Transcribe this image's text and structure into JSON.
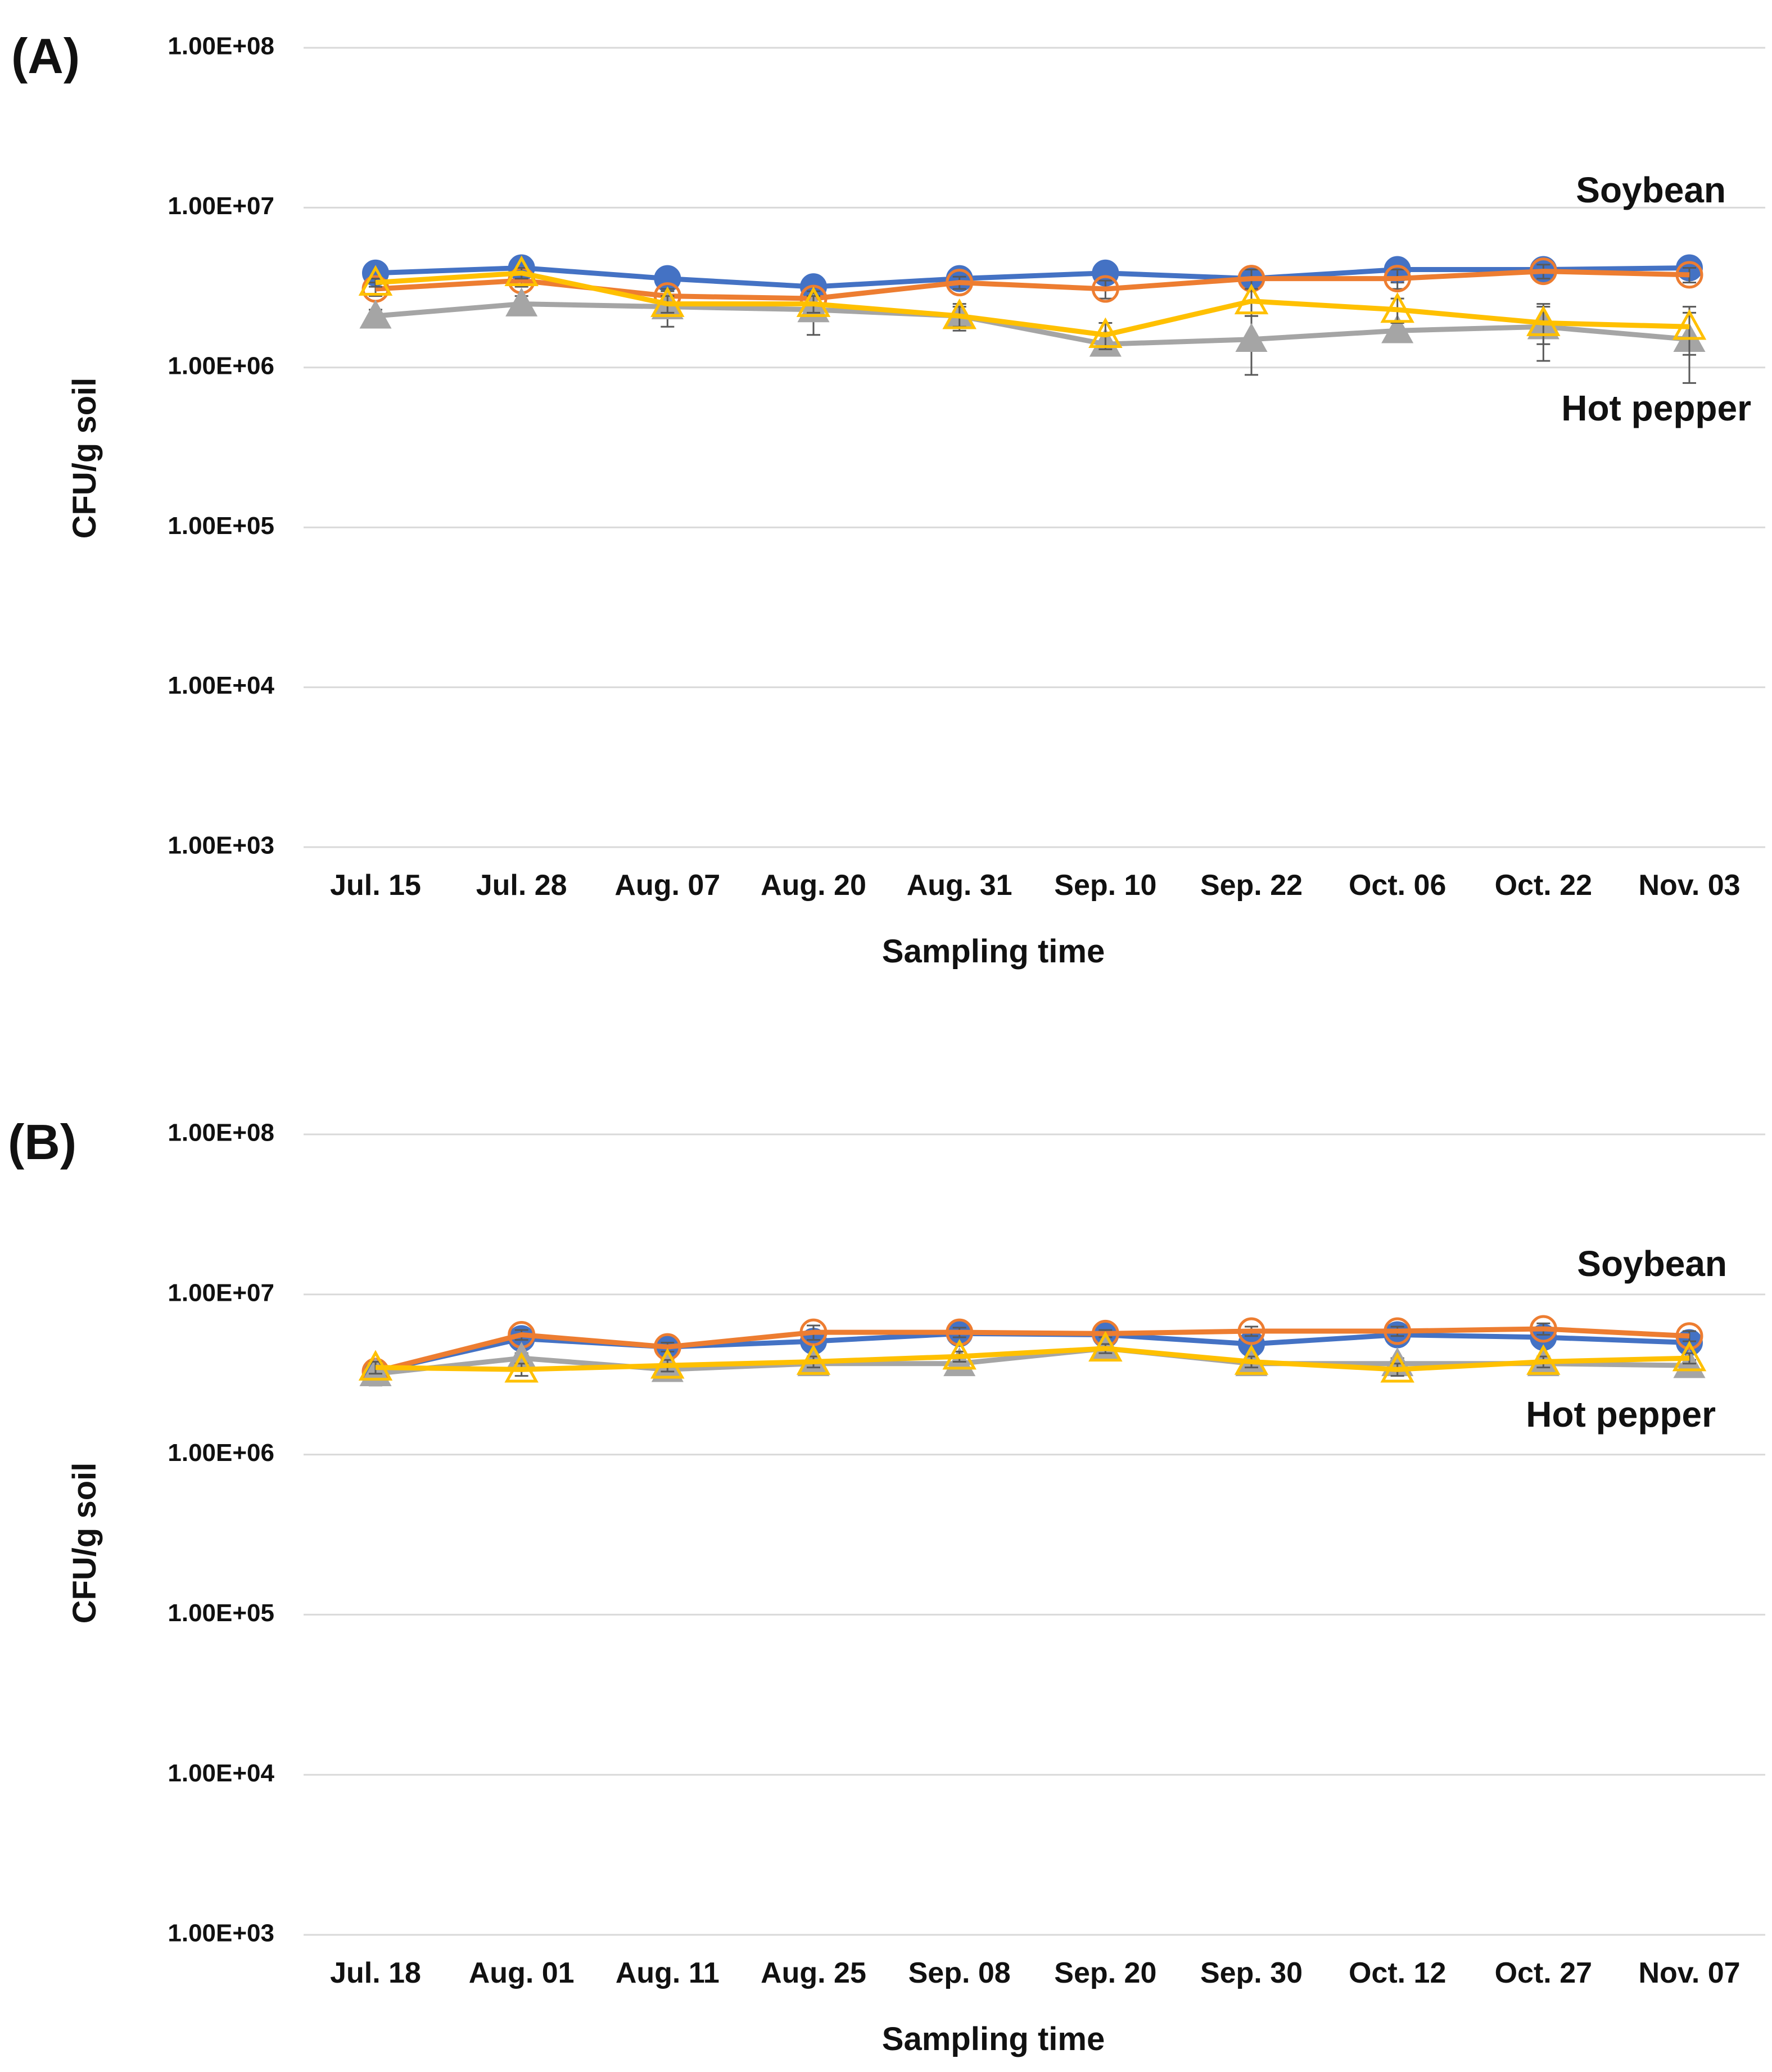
{
  "chart_data": [
    {
      "type": "line",
      "panel_label": "(A)",
      "ylabel": "CFU/g soil",
      "xlabel": "Sampling time",
      "yscale": "log",
      "ylim": [
        1000,
        100000000
      ],
      "yticks": [
        1000,
        10000,
        100000,
        1000000,
        10000000,
        100000000
      ],
      "ytick_labels": [
        "1.00E+03",
        "1.00E+04",
        "1.00E+05",
        "1.00E+06",
        "1.00E+07",
        "1.00E+08"
      ],
      "grid": true,
      "categories": [
        "Jul. 15",
        "Jul. 28",
        "Aug. 07",
        "Aug. 20",
        "Aug. 31",
        "Sep. 10",
        "Sep. 22",
        "Oct. 06",
        "Oct. 22",
        "Nov. 03"
      ],
      "annotations": [
        "Soybean",
        "Hot pepper"
      ],
      "series": [
        {
          "name": "Soybean (filled circle)",
          "color": "#4472C4",
          "marker": "circle-filled",
          "values": [
            3900000,
            4200000,
            3600000,
            3200000,
            3600000,
            3900000,
            3600000,
            4100000,
            4100000,
            4200000
          ],
          "errors": [
            300000,
            300000,
            400000,
            200000,
            300000,
            300000,
            500000,
            700000,
            300000,
            300000
          ]
        },
        {
          "name": "Soybean (open circle)",
          "color": "#ED7D31",
          "marker": "circle-open",
          "values": [
            3100000,
            3500000,
            2800000,
            2700000,
            3400000,
            3100000,
            3600000,
            3600000,
            4000000,
            3800000
          ],
          "errors": [
            300000,
            300000,
            300000,
            300000,
            300000,
            400000,
            500000,
            500000,
            400000,
            400000
          ]
        },
        {
          "name": "Hot pepper (filled triangle)",
          "color": "#A5A5A5",
          "marker": "triangle-filled",
          "values": [
            2100000,
            2500000,
            2400000,
            2300000,
            2100000,
            1400000,
            1500000,
            1700000,
            1800000,
            1500000
          ],
          "errors": [
            200000,
            300000,
            600000,
            700000,
            400000,
            200000,
            600000,
            200000,
            700000,
            700000
          ]
        },
        {
          "name": "Hot pepper (open triangle)",
          "color": "#FFC000",
          "marker": "triangle-open",
          "values": [
            3400000,
            3900000,
            2500000,
            2500000,
            2100000,
            1600000,
            2600000,
            2300000,
            1900000,
            1800000
          ],
          "errors": [
            200000,
            300000,
            300000,
            300000,
            300000,
            300000,
            500000,
            400000,
            500000,
            600000
          ]
        }
      ]
    },
    {
      "type": "line",
      "panel_label": "(B)",
      "ylabel": "CFU/g soil",
      "xlabel": "Sampling time",
      "yscale": "log",
      "ylim": [
        1000,
        100000000
      ],
      "yticks": [
        1000,
        10000,
        100000,
        1000000,
        10000000,
        100000000
      ],
      "ytick_labels": [
        "1.00E+03",
        "1.00E+04",
        "1.00E+05",
        "1.00E+06",
        "1.00E+07",
        "1.00E+08"
      ],
      "grid": true,
      "categories": [
        "Jul. 18",
        "Aug. 01",
        "Aug. 11",
        "Aug. 25",
        "Sep. 08",
        "Sep. 20",
        "Sep. 30",
        "Oct. 12",
        "Oct. 27",
        "Nov. 07"
      ],
      "annotations": [
        "Soybean",
        "Hot pepper"
      ],
      "series": [
        {
          "name": "Soybean (filled circle)",
          "color": "#4472C4",
          "marker": "circle-filled",
          "values": [
            3300000,
            5300000,
            4700000,
            5100000,
            5700000,
            5600000,
            4900000,
            5600000,
            5400000,
            5000000
          ],
          "errors": [
            400000,
            400000,
            300000,
            400000,
            300000,
            300000,
            300000,
            300000,
            400000,
            300000
          ]
        },
        {
          "name": "Soybean (open circle)",
          "color": "#ED7D31",
          "marker": "circle-open",
          "values": [
            3300000,
            5600000,
            4700000,
            5800000,
            5800000,
            5700000,
            5900000,
            5900000,
            6100000,
            5500000
          ],
          "errors": [
            400000,
            400000,
            300000,
            600000,
            400000,
            300000,
            400000,
            400000,
            500000,
            400000
          ]
        },
        {
          "name": "Hot pepper (filled triangle)",
          "color": "#A5A5A5",
          "marker": "triangle-filled",
          "values": [
            3200000,
            4000000,
            3400000,
            3700000,
            3700000,
            4600000,
            3700000,
            3700000,
            3700000,
            3600000
          ],
          "errors": [
            500000,
            300000,
            400000,
            300000,
            300000,
            300000,
            300000,
            300000,
            300000,
            300000
          ]
        },
        {
          "name": "Hot pepper (open triangle)",
          "color": "#FFC000",
          "marker": "triangle-open",
          "values": [
            3500000,
            3400000,
            3600000,
            3800000,
            4100000,
            4600000,
            3800000,
            3400000,
            3800000,
            4000000
          ],
          "errors": [
            300000,
            300000,
            300000,
            300000,
            300000,
            300000,
            300000,
            300000,
            300000,
            300000
          ]
        }
      ]
    }
  ]
}
